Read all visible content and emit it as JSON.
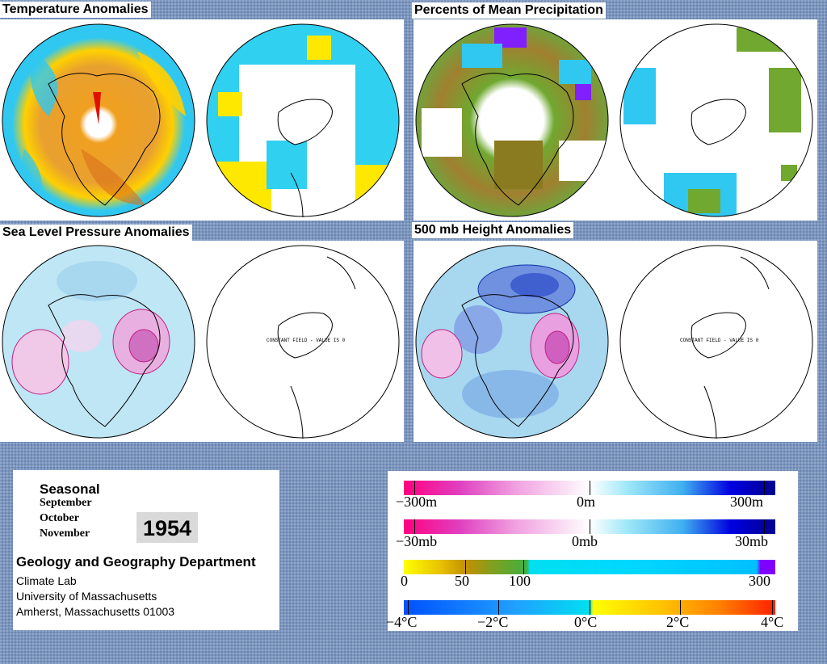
{
  "panels": {
    "temperature": {
      "title": "Temperature Anomalies"
    },
    "precipitation": {
      "title": "Percents of Mean Precipitation"
    },
    "slp": {
      "title": "Sea Level Pressure Anomalies",
      "constant_text": "CONSTANT FIELD - VALUE IS 0"
    },
    "height500": {
      "title": "500 mb Height Anomalies",
      "constant_text": "CONSTANT FIELD - VALUE IS 0"
    }
  },
  "info": {
    "season": "Seasonal",
    "months": [
      "September",
      "October",
      "November"
    ],
    "year": "1954",
    "department": "Geology and Geography Department",
    "address": [
      "Climate Lab",
      "University of Massachusetts",
      "Amherst, Massachusetts 01003"
    ]
  },
  "legend": {
    "height": {
      "left": "−300m",
      "mid": "0m",
      "right": "300m"
    },
    "pressure": {
      "left": "−30mb",
      "mid": "0mb",
      "right": "30mb"
    },
    "precip": {
      "l0": "0",
      "l50": "50",
      "l100": "100",
      "l300": "300"
    },
    "temp": {
      "l1": "−4°C",
      "l2": "−2°C",
      "l3": "0°C",
      "l4": "2°C",
      "l5": "4°C"
    }
  },
  "colors": {
    "diverging_pink_blue": [
      "#ff0080",
      "#e040c0",
      "#f0a0e0",
      "#ffffff",
      "#a0e8f8",
      "#40b0f0",
      "#0000e0",
      "#000090"
    ],
    "precip": [
      "#ffff00",
      "#c09000",
      "#60a020",
      "#00e0f0",
      "#00c0ff",
      "#8000ff"
    ],
    "temperature": [
      "#0060ff",
      "#30a0ff",
      "#00e0f0",
      "#ffff00",
      "#ffa000",
      "#ff2000"
    ]
  }
}
